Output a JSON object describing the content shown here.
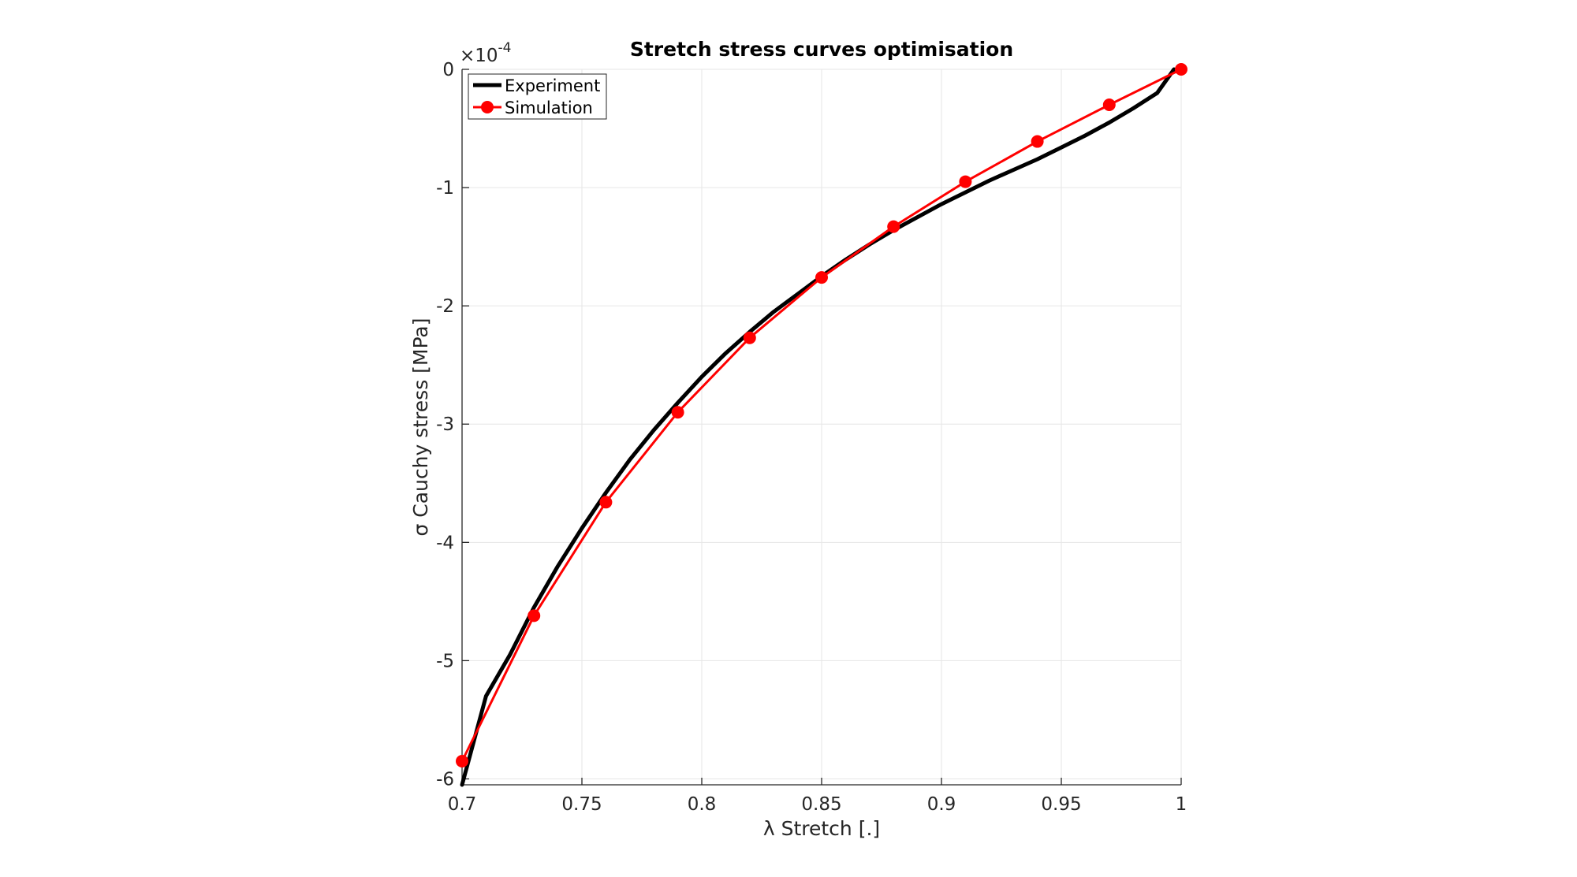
{
  "chart_data": {
    "type": "line",
    "title": "Stretch stress curves optimisation",
    "xlabel": "λ Stretch [.]",
    "ylabel": "σ Cauchy stress [MPa]",
    "y_multiplier_label": "×10",
    "y_multiplier_exponent": "-4",
    "xlim": [
      0.7,
      1.0
    ],
    "ylim": [
      -6.05,
      0
    ],
    "x_ticks": [
      0.7,
      0.75,
      0.8,
      0.85,
      0.9,
      0.95,
      1.0
    ],
    "x_tick_labels": [
      "0.7",
      "0.75",
      "0.8",
      "0.85",
      "0.9",
      "0.95",
      "1"
    ],
    "y_ticks": [
      0,
      -1,
      -2,
      -3,
      -4,
      -5,
      -6
    ],
    "y_tick_labels": [
      "0",
      "-1",
      "-2",
      "-3",
      "-4",
      "-5",
      "-6"
    ],
    "grid": true,
    "legend_position": "top-left",
    "series": [
      {
        "name": "Experiment",
        "color": "#000000",
        "marker": "none",
        "x": [
          0.7,
          0.71,
          0.72,
          0.73,
          0.74,
          0.75,
          0.76,
          0.77,
          0.78,
          0.79,
          0.8,
          0.81,
          0.82,
          0.83,
          0.84,
          0.85,
          0.86,
          0.87,
          0.88,
          0.89,
          0.9,
          0.91,
          0.92,
          0.93,
          0.94,
          0.95,
          0.96,
          0.97,
          0.98,
          0.99,
          0.997
        ],
        "y": [
          -6.05,
          -5.3,
          -4.95,
          -4.55,
          -4.2,
          -3.88,
          -3.58,
          -3.3,
          -3.05,
          -2.82,
          -2.6,
          -2.4,
          -2.22,
          -2.05,
          -1.9,
          -1.75,
          -1.61,
          -1.48,
          -1.36,
          -1.25,
          -1.14,
          -1.04,
          -0.94,
          -0.85,
          -0.76,
          -0.66,
          -0.56,
          -0.45,
          -0.33,
          -0.2,
          0.0
        ]
      },
      {
        "name": "Simulation",
        "color": "#ff0000",
        "marker": "circle",
        "x": [
          0.7,
          0.73,
          0.76,
          0.79,
          0.82,
          0.85,
          0.88,
          0.91,
          0.94,
          0.97,
          1.0
        ],
        "y": [
          -5.85,
          -4.62,
          -3.66,
          -2.9,
          -2.27,
          -1.76,
          -1.33,
          -0.95,
          -0.61,
          -0.3,
          0.0
        ]
      }
    ]
  }
}
